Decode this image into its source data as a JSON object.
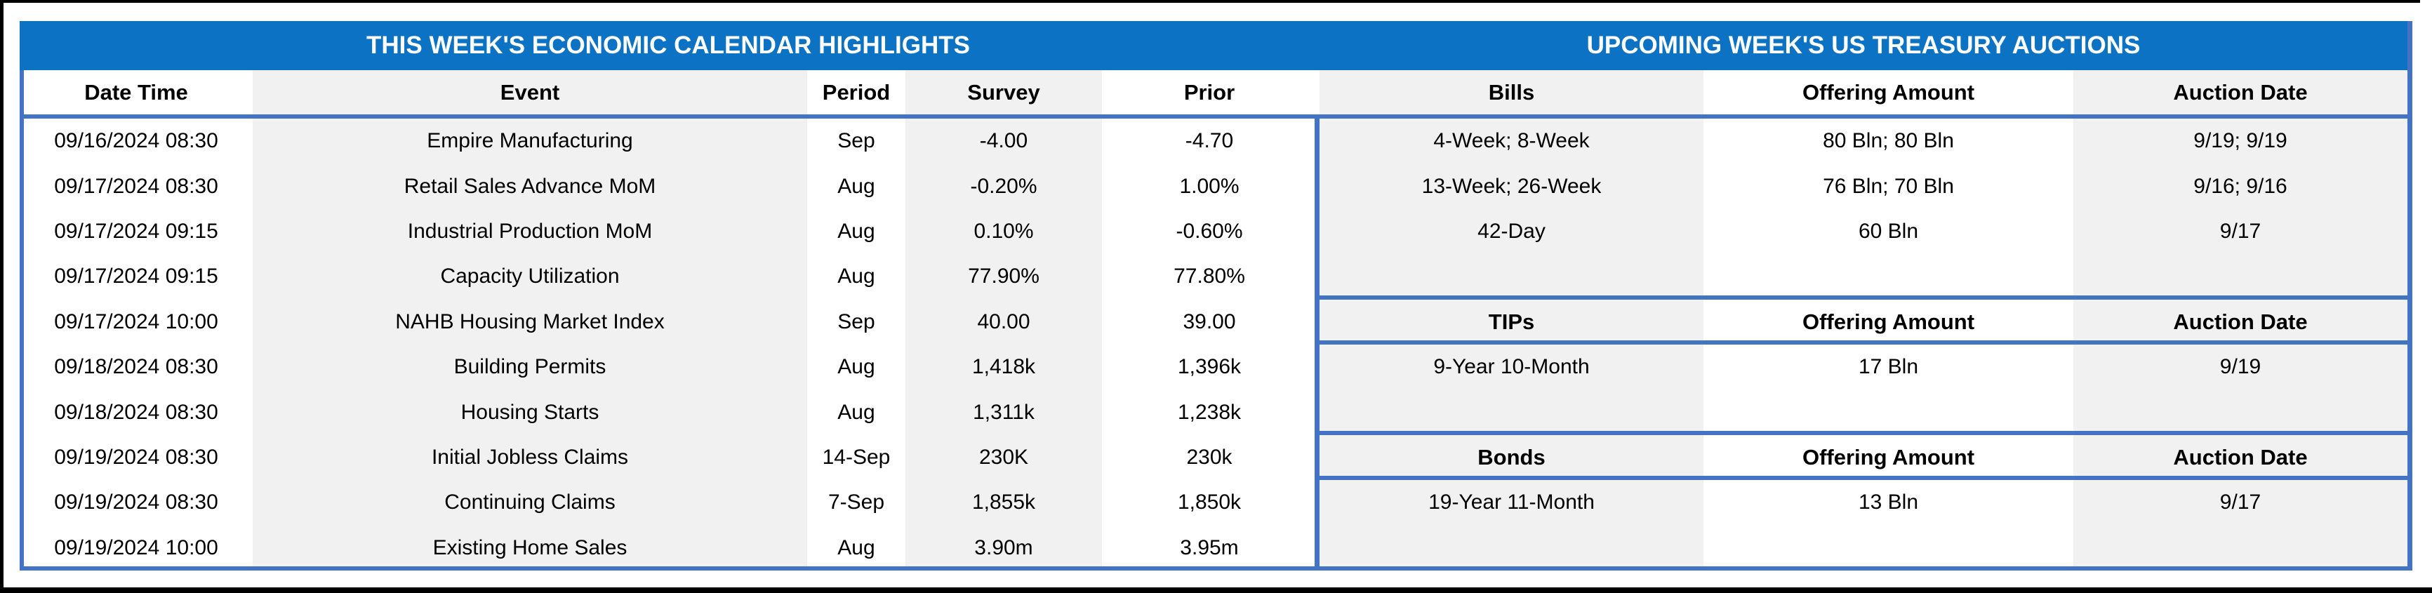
{
  "titles": {
    "calendar": "THIS WEEK'S ECONOMIC CALENDAR HIGHLIGHTS",
    "auctions": "UPCOMING WEEK'S US TREASURY AUCTIONS"
  },
  "calendar": {
    "headers": [
      "Date Time",
      "Event",
      "Period",
      "Survey",
      "Prior"
    ],
    "rows": [
      {
        "date": "09/16/2024 08:30",
        "event": "Empire Manufacturing",
        "period": "Sep",
        "survey": "-4.00",
        "prior": "-4.70"
      },
      {
        "date": "09/17/2024 08:30",
        "event": "Retail Sales Advance MoM",
        "period": "Aug",
        "survey": "-0.20%",
        "prior": "1.00%"
      },
      {
        "date": "09/17/2024 09:15",
        "event": "Industrial Production MoM",
        "period": "Aug",
        "survey": "0.10%",
        "prior": "-0.60%"
      },
      {
        "date": "09/17/2024 09:15",
        "event": "Capacity Utilization",
        "period": "Aug",
        "survey": "77.90%",
        "prior": "77.80%"
      },
      {
        "date": "09/17/2024 10:00",
        "event": "NAHB Housing Market Index",
        "period": "Sep",
        "survey": "40.00",
        "prior": "39.00"
      },
      {
        "date": "09/18/2024 08:30",
        "event": "Building Permits",
        "period": "Aug",
        "survey": "1,418k",
        "prior": "1,396k"
      },
      {
        "date": "09/18/2024 08:30",
        "event": "Housing Starts",
        "period": "Aug",
        "survey": "1,311k",
        "prior": "1,238k"
      },
      {
        "date": "09/19/2024 08:30",
        "event": "Initial Jobless Claims",
        "period": "14-Sep",
        "survey": "230K",
        "prior": "230k"
      },
      {
        "date": "09/19/2024 08:30",
        "event": "Continuing Claims",
        "period": "7-Sep",
        "survey": "1,855k",
        "prior": "1,850k"
      },
      {
        "date": "09/19/2024 10:00",
        "event": "Existing Home Sales",
        "period": "Aug",
        "survey": "3.90m",
        "prior": "3.95m"
      }
    ]
  },
  "auctions": {
    "sections": [
      {
        "header": {
          "label": "Bills",
          "amount": "Offering Amount",
          "date": "Auction Date"
        },
        "rows": [
          {
            "instrument": "4-Week; 8-Week",
            "amount": "80 Bln; 80 Bln",
            "date": "9/19; 9/19"
          },
          {
            "instrument": "13-Week; 26-Week",
            "amount": "76 Bln; 70 Bln",
            "date": "9/16; 9/16"
          },
          {
            "instrument": "42-Day",
            "amount": "60 Bln",
            "date": "9/17"
          },
          {
            "instrument": "",
            "amount": "",
            "date": ""
          }
        ]
      },
      {
        "header": {
          "label": "TIPs",
          "amount": "Offering Amount",
          "date": "Auction Date"
        },
        "rows": [
          {
            "instrument": "9-Year 10-Month",
            "amount": "17 Bln",
            "date": "9/19"
          },
          {
            "instrument": "",
            "amount": "",
            "date": ""
          }
        ]
      },
      {
        "header": {
          "label": "Bonds",
          "amount": "Offering Amount",
          "date": "Auction Date"
        },
        "rows": [
          {
            "instrument": "19-Year 11-Month",
            "amount": "13 Bln",
            "date": "9/17"
          },
          {
            "instrument": "",
            "amount": "",
            "date": ""
          }
        ]
      }
    ]
  },
  "colors": {
    "title_bar_blue": "#0C72C4",
    "border_blue": "#4472C4",
    "stripe_gray": "#F1F1F1",
    "frame_black": "#000000"
  }
}
